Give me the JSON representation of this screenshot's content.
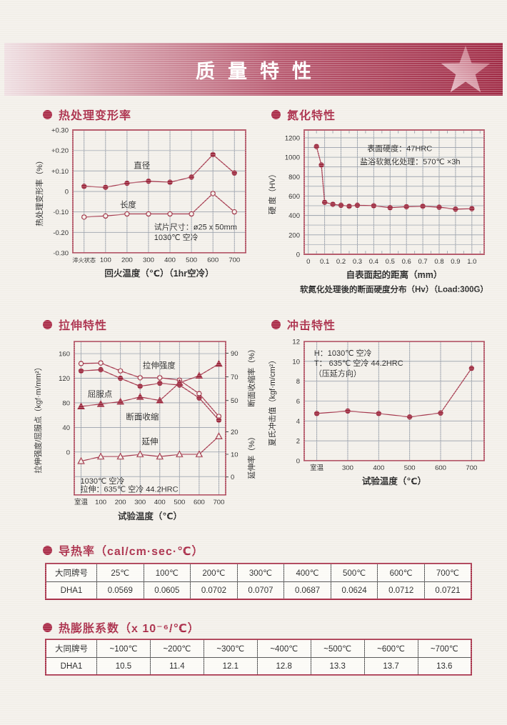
{
  "banner": {
    "title": "质量特性"
  },
  "sections": {
    "deformation": {
      "heading": "热处理变形率"
    },
    "nitriding": {
      "heading": "氮化特性"
    },
    "tensile": {
      "heading": "拉伸特性"
    },
    "impact": {
      "heading": "冲击特性"
    },
    "conductivity": {
      "heading": "导热率（cal/cm·sec·℃）"
    },
    "expansion": {
      "heading": "热膨胀系数（x 10⁻⁶/℃）"
    }
  },
  "colors": {
    "accent": "#a82744",
    "line": "#a5394e",
    "marker": "#9c2a3f",
    "grid": "#99a0aa",
    "border": "#b04c5e",
    "paper": "#f2efe9",
    "text": "#222222",
    "banner_dark": "#a02c46",
    "banner_light": "#efdfe2",
    "star": "#d295a3"
  },
  "chart_data": [
    {
      "id": "deformation",
      "type": "line",
      "title": "热处理变形率",
      "categories": [
        "淬火状态",
        "100",
        "200",
        "300",
        "400",
        "500",
        "600",
        "700"
      ],
      "series": [
        {
          "name": "直径",
          "marker": "circle-filled",
          "axis": "left",
          "values": [
            0.025,
            0.02,
            0.04,
            0.05,
            0.045,
            0.07,
            0.18,
            0.09
          ]
        },
        {
          "name": "长度",
          "marker": "circle-open",
          "axis": "left",
          "values": [
            -0.125,
            -0.12,
            -0.11,
            -0.11,
            -0.11,
            -0.11,
            -0.01,
            -0.1
          ]
        }
      ],
      "ylabel": "热处理变形率（%）",
      "xlabel": "回火温度（℃）（1hr空冷）",
      "yticks": [
        {
          "v": 0.3,
          "label": "+0.30"
        },
        {
          "v": 0.2,
          "label": "+0.20"
        },
        {
          "v": 0.1,
          "label": "+0.10"
        },
        {
          "v": 0,
          "label": "0"
        },
        {
          "v": -0.1,
          "label": "-0.10"
        },
        {
          "v": -0.2,
          "label": "-0.20"
        },
        {
          "v": -0.3,
          "label": "-0.30"
        }
      ],
      "ylim": [
        -0.3,
        0.3
      ],
      "annotation": [
        "试片尺寸：ø25 x 50mm",
        "1030℃ 空冷"
      ],
      "grid": "on",
      "legend_position": "inline"
    },
    {
      "id": "nitriding",
      "type": "line",
      "title": "氮化特性",
      "x": [
        0.05,
        0.08,
        0.1,
        0.15,
        0.2,
        0.25,
        0.3,
        0.4,
        0.5,
        0.6,
        0.7,
        0.8,
        0.9,
        1.0
      ],
      "series": [
        {
          "name": "硬度",
          "marker": "circle-filled",
          "axis": "left",
          "values": [
            1110,
            920,
            535,
            515,
            505,
            495,
            505,
            500,
            480,
            490,
            495,
            485,
            465,
            470
          ]
        }
      ],
      "ylabel": "硬 度（HV）",
      "xlabel": "自表面起的距离（mm）",
      "yticks": [
        {
          "v": 1200,
          "label": "1200"
        },
        {
          "v": 1000,
          "label": "1000"
        },
        {
          "v": 800,
          "label": "800"
        },
        {
          "v": 600,
          "label": "600"
        },
        {
          "v": 400,
          "label": "400"
        },
        {
          "v": 200,
          "label": "200"
        },
        {
          "v": 0,
          "label": "0"
        }
      ],
      "xticks": [
        {
          "v": 0,
          "label": "0"
        },
        {
          "v": 0.1,
          "label": "0.1"
        },
        {
          "v": 0.2,
          "label": "0.2"
        },
        {
          "v": 0.3,
          "label": "0.3"
        },
        {
          "v": 0.4,
          "label": "0.4"
        },
        {
          "v": 0.5,
          "label": "0.5"
        },
        {
          "v": 0.6,
          "label": "0.6"
        },
        {
          "v": 0.7,
          "label": "0.7"
        },
        {
          "v": 0.8,
          "label": "0.8"
        },
        {
          "v": 0.9,
          "label": "0.9"
        },
        {
          "v": 1.0,
          "label": "1.0"
        }
      ],
      "ylim": [
        0,
        1280
      ],
      "xlim": [
        0,
        1.0
      ],
      "annotation": [
        "表面硬度：47HRC",
        "盐浴软氮化处理：570℃ ×3h"
      ],
      "caption": "软氮化处理後的断面硬度分布（Hv）（Load:300G）",
      "grid": "on"
    },
    {
      "id": "tensile",
      "type": "line",
      "title": "拉伸特性",
      "categories": [
        "室温",
        "100",
        "200",
        "300",
        "400",
        "500",
        "600",
        "700"
      ],
      "series": [
        {
          "name": "拉伸强度",
          "marker": "circle-open",
          "axis": "left",
          "values": [
            144,
            145,
            132,
            121,
            121,
            117,
            95,
            58
          ]
        },
        {
          "name": "屈服点",
          "marker": "circle-filled",
          "axis": "left",
          "values": [
            132,
            134,
            120,
            107,
            112,
            109,
            88,
            52
          ]
        },
        {
          "name": "断面收缩",
          "marker": "triangle-filled",
          "axis": "right1",
          "values": [
            45,
            47,
            49,
            53,
            50,
            65,
            71,
            81
          ]
        },
        {
          "name": "延伸",
          "marker": "triangle-open",
          "axis": "right2",
          "values": [
            7,
            9,
            9,
            10,
            9,
            10,
            10,
            18
          ]
        }
      ],
      "axes": [
        {
          "id": "left",
          "label": "拉伸强度/屈服点（kgf·m/mm²）",
          "ticks": [
            {
              "v": 160,
              "label": "160"
            },
            {
              "v": 120,
              "label": "120"
            },
            {
              "v": 80,
              "label": "80"
            },
            {
              "v": 40,
              "label": "40"
            },
            {
              "v": 0,
              "label": "0"
            }
          ]
        },
        {
          "id": "right1",
          "label": "断面收缩率（%）",
          "ticks": [
            {
              "v": 90,
              "label": "90"
            },
            {
              "v": 70,
              "label": "70"
            },
            {
              "v": 50,
              "label": "50"
            }
          ]
        },
        {
          "id": "right2",
          "label": "延伸率（%）",
          "ticks": [
            {
              "v": 20,
              "label": "20"
            },
            {
              "v": 10,
              "label": "10"
            },
            {
              "v": 0,
              "label": "0"
            }
          ]
        }
      ],
      "xlabel": "试验温度（℃）",
      "annotation": [
        "1030℃ 空冷",
        "拉伸：635℃ 空冷 44.2HRC"
      ],
      "grid": "on"
    },
    {
      "id": "impact",
      "type": "line",
      "title": "冲击特性",
      "categories": [
        "室温",
        "300",
        "400",
        "500",
        "600",
        "700"
      ],
      "series": [
        {
          "name": "夏氏冲击值",
          "marker": "circle-filled",
          "axis": "left",
          "values": [
            4.75,
            5.0,
            4.75,
            4.4,
            4.8,
            9.3
          ]
        }
      ],
      "ylabel": "夏氏冲击值（kgf·m/cm²）",
      "xlabel": "试验温度（℃）",
      "yticks": [
        {
          "v": 12,
          "label": "12"
        },
        {
          "v": 10,
          "label": "10"
        },
        {
          "v": 8,
          "label": "8"
        },
        {
          "v": 6,
          "label": "6"
        },
        {
          "v": 4,
          "label": "4"
        },
        {
          "v": 2,
          "label": "2"
        },
        {
          "v": 0,
          "label": "0"
        }
      ],
      "ylim": [
        0,
        12
      ],
      "annotation": [
        "H：1030℃ 空冷",
        "T： 635℃ 空冷  44.2HRC",
        "（压延方向）"
      ],
      "grid": "on"
    }
  ],
  "tables": {
    "conductivity": {
      "headers": [
        "大同牌号",
        "25℃",
        "100℃",
        "200℃",
        "300℃",
        "400℃",
        "500℃",
        "600℃",
        "700℃"
      ],
      "rows": [
        [
          "DHA1",
          "0.0569",
          "0.0605",
          "0.0702",
          "0.0707",
          "0.0687",
          "0.0624",
          "0.0712",
          "0.0721"
        ]
      ]
    },
    "expansion": {
      "headers": [
        "大同牌号",
        "~100℃",
        "~200℃",
        "~300℃",
        "~400℃",
        "~500℃",
        "~600℃",
        "~700℃"
      ],
      "rows": [
        [
          "DHA1",
          "10.5",
          "11.4",
          "12.1",
          "12.8",
          "13.3",
          "13.7",
          "13.6"
        ]
      ]
    }
  }
}
